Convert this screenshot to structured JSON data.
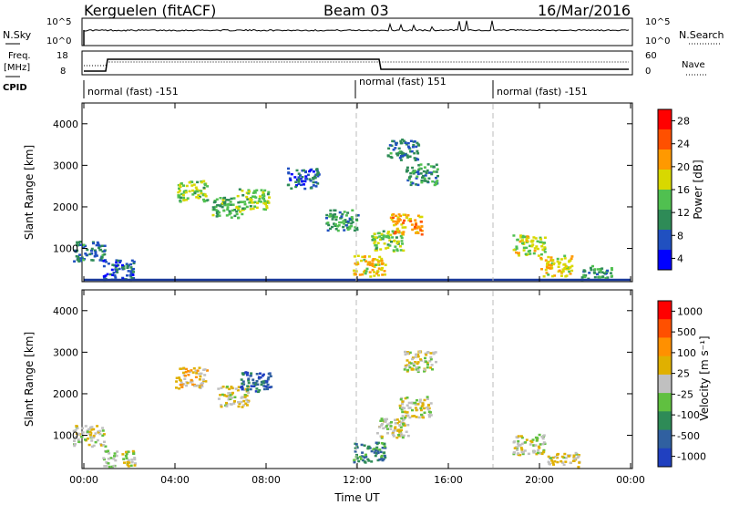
{
  "header": {
    "station": "Kerguelen (fitACF)",
    "beam": "Beam 03",
    "date": "16/Mar/2016"
  },
  "panels": {
    "nsky_label": "N.Sky",
    "nsky_ticks": [
      "10^5",
      "10^0"
    ],
    "nsearch_ticks": [
      "10^5",
      "10^0"
    ],
    "nsearch_label": "N.Search",
    "freq_label": "Freq.",
    "freq_unit": "[MHz]",
    "freq_ticks": [
      "18",
      "8"
    ],
    "nave_ticks": [
      "60",
      "0"
    ],
    "nave_label": "Nave",
    "cpid_label": "CPID",
    "cpid_segments": [
      {
        "label": "normal (fast) -151",
        "start_hour": 0
      },
      {
        "label": "normal (fast) 151",
        "start_hour": 12
      },
      {
        "label": "normal (fast) -151",
        "start_hour": 18
      }
    ]
  },
  "chart_data": [
    {
      "type": "heatmap",
      "name": "power",
      "xlabel": "Time UT",
      "ylabel": "Slant Range [km]",
      "x_ticks": [
        "00:00",
        "04:00",
        "08:00",
        "12:00",
        "16:00",
        "20:00",
        "00:00"
      ],
      "y_ticks": [
        "4000",
        "3000",
        "2000",
        "1000"
      ],
      "ylim": [
        200,
        4500
      ],
      "xlim": [
        0,
        24
      ],
      "colorbar_label": "Power [dB]",
      "colorbar_ticks": [
        "28",
        "24",
        "20",
        "16",
        "12",
        "8",
        "4"
      ],
      "colorscale": [
        "#0000ff",
        "#2050c0",
        "#2e8b57",
        "#50c050",
        "#d8d800",
        "#ff9900",
        "#ff5000",
        "#ff0000"
      ],
      "range": [
        0,
        30
      ],
      "clusters": [
        {
          "x": 0.2,
          "y": 950,
          "value": 8
        },
        {
          "x": 1.5,
          "y": 500,
          "value": 6
        },
        {
          "x": 4.7,
          "y": 2400,
          "value": 14
        },
        {
          "x": 6.3,
          "y": 2000,
          "value": 12
        },
        {
          "x": 7.4,
          "y": 2200,
          "value": 14
        },
        {
          "x": 9.6,
          "y": 2700,
          "value": 6
        },
        {
          "x": 11.3,
          "y": 1700,
          "value": 10
        },
        {
          "x": 12.5,
          "y": 600,
          "value": 18
        },
        {
          "x": 13.3,
          "y": 1200,
          "value": 14
        },
        {
          "x": 14.1,
          "y": 1600,
          "value": 20
        },
        {
          "x": 14.8,
          "y": 2800,
          "value": 10
        },
        {
          "x": 14.0,
          "y": 3400,
          "value": 8
        },
        {
          "x": 19.5,
          "y": 1100,
          "value": 16
        },
        {
          "x": 20.7,
          "y": 600,
          "value": 18
        },
        {
          "x": 22.5,
          "y": 350,
          "value": 10
        }
      ]
    },
    {
      "type": "heatmap",
      "name": "velocity",
      "xlabel": "Time UT",
      "ylabel": "Slant Range [km]",
      "x_ticks": [
        "00:00",
        "04:00",
        "08:00",
        "12:00",
        "16:00",
        "20:00",
        "00:00"
      ],
      "y_ticks": [
        "4000",
        "3000",
        "2000",
        "1000"
      ],
      "ylim": [
        200,
        4500
      ],
      "xlim": [
        0,
        24
      ],
      "colorbar_label": "Velocity [m s⁻¹]",
      "colorbar_ticks": [
        "1000",
        "500",
        "100",
        "25",
        "-25",
        "-100",
        "-500",
        "-1000"
      ],
      "colorscale": [
        "#2040c0",
        "#3060a0",
        "#2e8b57",
        "#60c040",
        "#c0c0c0",
        "#e0b000",
        "#ff9000",
        "#ff5000",
        "#ff0000"
      ],
      "range": [
        -1200,
        1200
      ],
      "clusters": [
        {
          "x": 0.2,
          "y": 1000,
          "value": 0
        },
        {
          "x": 1.5,
          "y": 400,
          "value": -60
        },
        {
          "x": 4.7,
          "y": 2400,
          "value": 200
        },
        {
          "x": 6.5,
          "y": 1950,
          "value": 100
        },
        {
          "x": 7.5,
          "y": 2300,
          "value": -800
        },
        {
          "x": 12.5,
          "y": 600,
          "value": -600
        },
        {
          "x": 13.5,
          "y": 1200,
          "value": 0
        },
        {
          "x": 14.5,
          "y": 1700,
          "value": 0
        },
        {
          "x": 14.7,
          "y": 2800,
          "value": 10
        },
        {
          "x": 19.5,
          "y": 800,
          "value": 0
        },
        {
          "x": 21.0,
          "y": 350,
          "value": 80
        }
      ]
    }
  ]
}
